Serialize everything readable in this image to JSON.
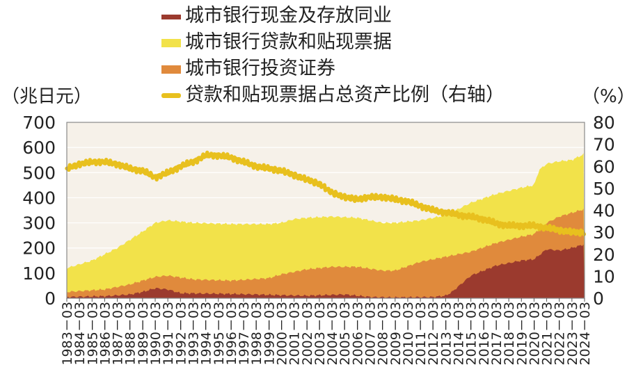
{
  "chart_data": {
    "type": "area",
    "left_unit": "（兆日元）",
    "right_unit": "（%）",
    "left_ticks": [
      "0",
      "100",
      "200",
      "300",
      "400",
      "500",
      "600",
      "700"
    ],
    "right_ticks": [
      "0",
      "10",
      "20",
      "30",
      "40",
      "50",
      "60",
      "70",
      "80"
    ],
    "ylim_left": [
      0,
      700
    ],
    "ylim_right": [
      0,
      80
    ],
    "x_labels": [
      "1983－03",
      "1984－03",
      "1985－03",
      "1986－03",
      "1987－03",
      "1988－03",
      "1989－03",
      "1990－03",
      "1991－03",
      "1992－03",
      "1993－03",
      "1994－03",
      "1995－03",
      "1996－03",
      "1997－03",
      "1998－03",
      "1999－03",
      "2000－03",
      "2001－03",
      "2002－03",
      "2003－03",
      "2004－03",
      "2005－03",
      "2006－03",
      "2007－03",
      "2008－03",
      "2009－03",
      "2010－03",
      "2011－03",
      "2012－03",
      "2013－03",
      "2014－03",
      "2015－03",
      "2016－03",
      "2017－03",
      "2018－03",
      "2019－03",
      "2020－03",
      "2021－03",
      "2022－03",
      "2023－03",
      "2024－03"
    ],
    "x_start": 1983,
    "x_end": 2024,
    "grid": true,
    "legend_position": "top",
    "series": [
      {
        "name": "城市银行现金及存放同业",
        "axis": "left",
        "color": "#9b3a2e",
        "x": [
          1983,
          1986,
          1988,
          1989,
          1990,
          1991,
          1992,
          1995,
          1998,
          2000,
          2002,
          2005,
          2007,
          2009,
          2012,
          2013,
          2013.5,
          2015,
          2017,
          2019,
          2020,
          2021,
          2022,
          2023,
          2024
        ],
        "values": [
          5,
          8,
          15,
          25,
          40,
          35,
          20,
          18,
          15,
          12,
          10,
          15,
          5,
          3,
          5,
          10,
          25,
          90,
          130,
          150,
          155,
          195,
          190,
          200,
          215
        ]
      },
      {
        "name": "城市银行投资证券",
        "axis": "left",
        "color": "#e08a3c",
        "x": [
          1983,
          1986,
          1988,
          1990,
          1991,
          1993,
          1996,
          1999,
          2000,
          2002,
          2004,
          2006,
          2008,
          2009,
          2011,
          2013,
          2015,
          2017,
          2019,
          2020,
          2021,
          2022,
          2023,
          2024
        ],
        "values": [
          25,
          35,
          55,
          85,
          90,
          75,
          70,
          80,
          95,
          115,
          125,
          125,
          110,
          110,
          145,
          165,
          185,
          220,
          245,
          255,
          300,
          325,
          340,
          355
        ]
      },
      {
        "name": "城市银行贷款和贴现票据",
        "axis": "left",
        "color": "#f2e24a",
        "x": [
          1983,
          1985,
          1987,
          1989,
          1990,
          1991,
          1993,
          1996,
          1999,
          2000,
          2001,
          2002,
          2004,
          2006,
          2008,
          2009,
          2011,
          2013,
          2015,
          2017,
          2019,
          2020,
          2020.4,
          2021,
          2022,
          2023,
          2024
        ],
        "values": [
          120,
          150,
          200,
          265,
          300,
          310,
          300,
          295,
          295,
          300,
          315,
          320,
          325,
          320,
          300,
          300,
          310,
          330,
          380,
          415,
          440,
          450,
          510,
          535,
          545,
          550,
          575
        ]
      },
      {
        "name": "贷款和贴现票据占总资产比例（右轴）",
        "axis": "right",
        "color": "#e8c01e",
        "x": [
          1983,
          1984,
          1985,
          1986,
          1987,
          1988,
          1989,
          1990,
          1991,
          1992,
          1993,
          1994,
          1995,
          1996,
          1997,
          1998,
          1999,
          2000,
          2001,
          2002,
          2003,
          2004,
          2005,
          2006,
          2007,
          2008,
          2009,
          2010,
          2011,
          2012,
          2013,
          2014,
          2015,
          2016,
          2017,
          2018,
          2019,
          2020,
          2021,
          2022,
          2023,
          2024
        ],
        "values": [
          59,
          61,
          62,
          62,
          61,
          59,
          58,
          55,
          57,
          60,
          62,
          65,
          65,
          64,
          62,
          60,
          59,
          58,
          56,
          54,
          52,
          48,
          46,
          45,
          46,
          46,
          45,
          44,
          42,
          40,
          39,
          38,
          37,
          36,
          34,
          33,
          33,
          33,
          32,
          31,
          30,
          30
        ]
      }
    ]
  }
}
